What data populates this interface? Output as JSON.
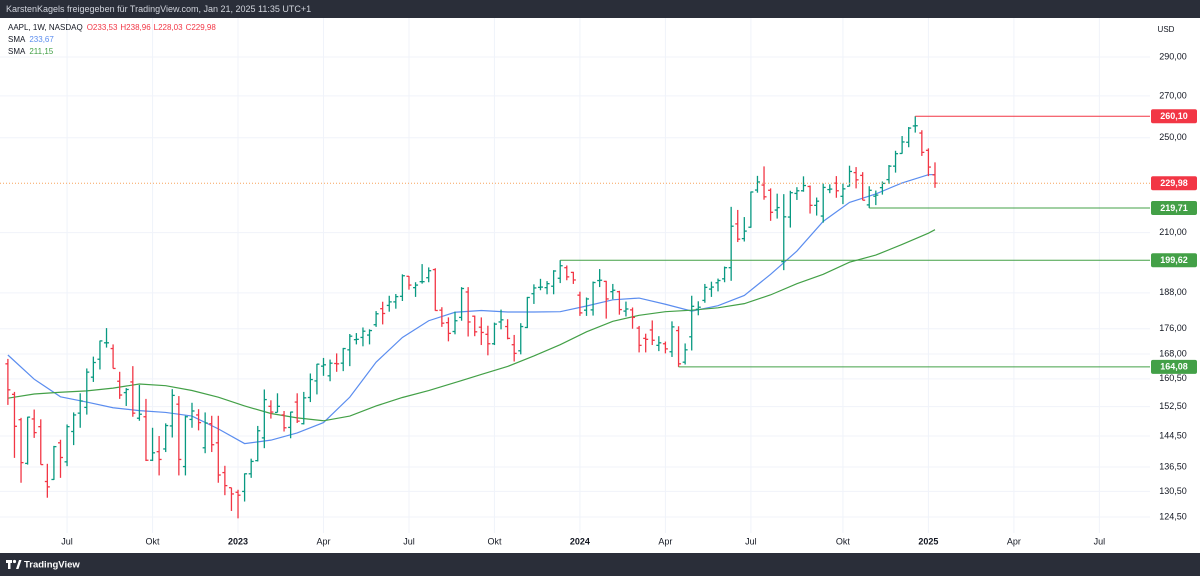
{
  "header": "KarstenKagels freigegeben für TradingView.com, Jan 21, 2025 11:35 UTC+1",
  "footer": "TradingView",
  "chart_data": {
    "type": "ohlc",
    "symbol": "AAPL, 1W, NASDAQ",
    "ohlc_labels": [
      "O233,53",
      "H238,96",
      "L228,03",
      "C229,98"
    ],
    "categories": [
      null,
      null,
      null,
      null,
      null,
      null,
      null,
      null,
      null,
      null,
      null,
      null,
      null,
      null,
      null,
      null,
      null,
      null,
      null,
      null,
      null,
      null,
      null,
      null,
      null,
      null,
      null,
      null,
      null,
      null,
      null,
      null,
      null,
      null,
      null,
      null,
      null,
      null,
      null,
      null,
      null,
      null,
      null,
      null,
      null,
      null,
      null,
      null,
      null,
      null,
      null,
      null,
      null,
      null,
      null,
      null,
      null,
      null,
      null,
      null,
      null,
      null,
      null,
      null,
      null,
      null,
      null,
      null,
      null,
      null,
      null,
      null,
      null,
      null,
      null,
      null,
      null,
      null,
      null,
      null,
      null,
      null,
      null,
      null,
      null,
      null,
      null,
      null,
      null,
      null,
      null,
      null,
      null,
      null,
      null,
      null,
      null,
      null,
      null,
      null,
      null,
      null,
      null,
      null,
      null,
      null,
      null,
      null,
      null,
      null,
      null,
      null,
      null,
      null,
      null,
      null,
      null,
      null,
      null,
      null,
      null,
      null,
      null,
      null,
      null,
      null,
      null,
      null,
      null,
      null,
      null,
      null,
      null,
      null,
      null,
      null,
      null,
      null,
      null,
      null,
      null,
      null
    ],
    "open": [
      165.0,
      156.0,
      148.9,
      137.4,
      149.1,
      147.0,
      132.9,
      133.4,
      142.7,
      137.8,
      145.7,
      150.7,
      152.3,
      161.0,
      166.4,
      171.5,
      169.7,
      159.8,
      156.5,
      159.6,
      149.3,
      149.7,
      138.2,
      140.4,
      141.1,
      147.2,
      153.2,
      136.6,
      148.97,
      150.2,
      141.4,
      147.8,
      142.7,
      135.1,
      131.4,
      130.3,
      130.5,
      134.8,
      138.1,
      144.0,
      152.6,
      150.9,
      150.2,
      146.8,
      153.8,
      147.8,
      155.1,
      159.9,
      164.3,
      161.4,
      165.1,
      165.2,
      169.3,
      172.5,
      173.2,
      173.96,
      177.3,
      182.6,
      183.7,
      184.9,
      186.8,
      193.8,
      189.8,
      191.9,
      193.3,
      196.2,
      182.1,
      177.97,
      175.1,
      179.7,
      188.3,
      180.1,
      176.5,
      174.2,
      171.2,
      178.2,
      176.7,
      170.9,
      169.0,
      176.4,
      187.7,
      189.9,
      189.8,
      190.3,
      193.1,
      196.9,
      195.2,
      187.2,
      182.1,
      182.2,
      192.3,
      192.0,
      188.4,
      188.4,
      181.8,
      182.2,
      176.2,
      172.9,
      175.6,
      170.7,
      171.2,
      168.7,
      175.4,
      165.5,
      173.4,
      182.4,
      185.4,
      189.3,
      191.5,
      192.9,
      196.9,
      213.4,
      207.7,
      212.1,
      227.1,
      229.2,
      227.0,
      218.9,
      199.1,
      216.1,
      225.7,
      226.8,
      228.6,
      220.8,
      216.5,
      227.3,
      230.0,
      224.5,
      228.7,
      234.5,
      233.3,
      220.99,
      224.55,
      228.1,
      231.5,
      237.3,
      242.9,
      247.95,
      255.5,
      252.2,
      244.3,
      233.53
    ],
    "high": [
      166.5,
      156.7,
      149.4,
      149.7,
      151.7,
      149.0,
      137.3,
      141.9,
      143.5,
      147.6,
      150.9,
      156.3,
      163.6,
      167.2,
      172.2,
      176.2,
      171.0,
      162.6,
      157.8,
      164.3,
      158.7,
      154.7,
      146.7,
      144.5,
      147.9,
      157.5,
      155.5,
      150.0,
      153.6,
      151.8,
      150.9,
      149.97,
      149.97,
      136.8,
      131.4,
      130.9,
      134.9,
      138.6,
      147.2,
      157.4,
      154.3,
      156.3,
      151.3,
      151.1,
      156.3,
      156.7,
      162.1,
      165.0,
      166.8,
      166.3,
      168.2,
      169.9,
      174.3,
      174.6,
      176.4,
      175.8,
      181.8,
      184.95,
      186.99,
      187.6,
      194.5,
      193.9,
      191.7,
      198.2,
      197.0,
      196.7,
      183.1,
      179.7,
      181.6,
      189.98,
      189.98,
      180.3,
      179.7,
      176.97,
      177.99,
      182.3,
      179.1,
      174.0,
      177.8,
      186.6,
      190.96,
      192.9,
      192.1,
      195.99,
      199.62,
      197.7,
      195.4,
      188.4,
      186.4,
      191.95,
      196.4,
      192.2,
      191.1,
      188.7,
      185.0,
      183.0,
      176.9,
      174.4,
      178.7,
      173.6,
      171.9,
      178.4,
      176.8,
      171.3,
      187.0,
      185.1,
      191.1,
      191.9,
      193.0,
      197.3,
      220.2,
      218.95,
      216.1,
      226.5,
      233.1,
      237.2,
      227.8,
      225.6,
      225.4,
      226.8,
      228.3,
      232.9,
      229.0,
      224.0,
      229.8,
      229.5,
      233.0,
      229.8,
      237.5,
      236.9,
      234.7,
      228.7,
      226.9,
      230.7,
      237.8,
      244.1,
      250.8,
      255.0,
      260.1,
      253.5,
      245.2,
      238.96
    ],
    "low": [
      153.0,
      138.8,
      132.6,
      137.1,
      144.0,
      137.1,
      129.0,
      133.3,
      133.8,
      136.7,
      142.1,
      146.7,
      150.3,
      159.6,
      163.3,
      170.0,
      163.6,
      154.7,
      152.7,
      149.7,
      148.6,
      138.0,
      138.0,
      134.4,
      140.3,
      144.1,
      134.4,
      134.4,
      146.7,
      146.0,
      140.0,
      140.3,
      132.6,
      129.6,
      125.9,
      124.2,
      128.1,
      133.8,
      137.9,
      141.3,
      149.2,
      150.9,
      145.7,
      143.9,
      148.0,
      147.6,
      153.8,
      155.98,
      161.4,
      159.8,
      162.6,
      162.8,
      164.3,
      171.0,
      170.4,
      171.0,
      176.6,
      177.4,
      181.6,
      182.6,
      185.2,
      189.1,
      186.6,
      191.2,
      191.7,
      181.9,
      176.6,
      171.96,
      174.2,
      178.6,
      173.5,
      173.6,
      170.8,
      167.6,
      170.8,
      175.8,
      172.6,
      165.7,
      167.9,
      176.2,
      184.2,
      188.9,
      187.5,
      187.5,
      191.4,
      192.4,
      191.1,
      180.2,
      180.2,
      180.3,
      190.0,
      179.3,
      185.8,
      180.6,
      180.0,
      176.0,
      168.5,
      168.5,
      170.8,
      168.9,
      168.2,
      167.1,
      164.08,
      164.8,
      169.1,
      180.4,
      184.6,
      186.6,
      188.5,
      191.7,
      192.2,
      206.4,
      206.6,
      211.9,
      226.0,
      223.1,
      214.6,
      215.5,
      196.0,
      211.97,
      223.0,
      226.4,
      217.5,
      216.7,
      213.9,
      225.8,
      223.9,
      221.3,
      228.6,
      227.8,
      222.9,
      219.71,
      220.9,
      225.2,
      229.7,
      234.5,
      242.8,
      245.7,
      252.4,
      241.8,
      233.0,
      228.03
    ],
    "close": [
      157.3,
      147.1,
      137.6,
      149.6,
      145.4,
      137.1,
      131.6,
      141.7,
      138.9,
      147.0,
      150.2,
      154.1,
      162.5,
      165.4,
      172.1,
      171.5,
      163.6,
      155.8,
      157.4,
      150.7,
      150.4,
      138.2,
      140.1,
      138.4,
      147.3,
      155.7,
      138.4,
      149.7,
      151.3,
      148.1,
      148.0,
      142.2,
      134.5,
      131.9,
      129.9,
      129.6,
      134.8,
      137.9,
      145.9,
      154.5,
      151.0,
      152.6,
      146.7,
      151.0,
      148.5,
      155.0,
      160.3,
      164.9,
      164.7,
      165.2,
      165.0,
      169.7,
      173.6,
      172.6,
      175.2,
      175.4,
      180.9,
      181.0,
      184.9,
      186.7,
      194.0,
      190.7,
      190.7,
      191.9,
      195.8,
      182.0,
      177.8,
      174.5,
      178.6,
      189.5,
      178.2,
      175.0,
      174.8,
      171.2,
      177.5,
      178.9,
      172.9,
      168.2,
      176.7,
      186.4,
      189.7,
      190.0,
      191.2,
      195.7,
      197.6,
      193.6,
      192.5,
      181.2,
      185.9,
      191.6,
      192.4,
      185.9,
      188.9,
      182.3,
      182.5,
      179.7,
      170.7,
      172.6,
      172.3,
      171.5,
      169.6,
      176.6,
      165.0,
      169.3,
      183.4,
      183.1,
      189.9,
      190.0,
      192.3,
      196.9,
      212.5,
      207.5,
      210.6,
      226.3,
      230.5,
      224.3,
      218.0,
      219.9,
      216.2,
      226.0,
      226.8,
      229.0,
      220.8,
      222.5,
      228.2,
      227.5,
      226.8,
      227.6,
      235.0,
      231.4,
      222.9,
      227.0,
      225.0,
      229.9,
      237.3,
      242.8,
      248.1,
      254.5,
      255.6,
      243.4,
      236.9,
      229.98
    ],
    "up_color": "#089981",
    "down_color": "#f23645",
    "series": [
      {
        "name": "SMA",
        "color": "#5b8def",
        "value_label": "233,67",
        "x": [
          0,
          4,
          8,
          12,
          16,
          20,
          24,
          28,
          32,
          36,
          40,
          44,
          48,
          52,
          56,
          60,
          64,
          68,
          72,
          76,
          80,
          84,
          88,
          92,
          96,
          100,
          104,
          108,
          112,
          116,
          120,
          124,
          128,
          132,
          136,
          140,
          141
        ],
        "values": [
          167.7,
          160.4,
          155.3,
          153.8,
          152.2,
          151.4,
          150.9,
          149.9,
          146.4,
          142.5,
          143.4,
          145.3,
          148.1,
          155.2,
          165.5,
          173.2,
          178.6,
          181.4,
          182.0,
          181.5,
          181.5,
          181.6,
          183.5,
          185.6,
          186.2,
          184.1,
          181.8,
          183.6,
          187.1,
          194.5,
          203.0,
          214.4,
          222.0,
          225.5,
          230.1,
          233.6,
          233.67
        ]
      },
      {
        "name": "SMA",
        "color": "#43a047",
        "value_label": "211,15",
        "x": [
          0,
          4,
          8,
          12,
          16,
          20,
          24,
          28,
          32,
          36,
          40,
          44,
          48,
          52,
          56,
          60,
          64,
          68,
          72,
          76,
          80,
          84,
          88,
          92,
          96,
          100,
          104,
          108,
          112,
          116,
          120,
          124,
          128,
          132,
          136,
          140,
          141
        ],
        "values": [
          154.9,
          156.1,
          156.6,
          157.0,
          157.8,
          159.0,
          158.5,
          157.1,
          155.2,
          152.7,
          150.6,
          149.4,
          148.6,
          149.9,
          152.7,
          155.1,
          157.1,
          159.4,
          161.8,
          164.2,
          167.4,
          170.9,
          175.0,
          178.4,
          180.4,
          181.6,
          182.1,
          182.9,
          184.3,
          187.3,
          191.2,
          194.5,
          198.9,
          201.5,
          205.5,
          209.8,
          211.15
        ]
      }
    ],
    "unit": "USD",
    "log_scale": true,
    "grid": true,
    "ylim": [
      120.9,
      309.3
    ],
    "yticks": [
      {
        "value": 124.5,
        "label": "124,50"
      },
      {
        "value": 130.5,
        "label": "130,50"
      },
      {
        "value": 136.5,
        "label": "136,50"
      },
      {
        "value": 144.5,
        "label": "144,50"
      },
      {
        "value": 152.5,
        "label": "152,50"
      },
      {
        "value": 160.5,
        "label": "160,50"
      },
      {
        "value": 168,
        "label": "168,00"
      },
      {
        "value": 176,
        "label": "176,00"
      },
      {
        "value": 188,
        "label": "188,00"
      },
      {
        "value": 210,
        "label": "210,00"
      },
      {
        "value": 250,
        "label": "250,00"
      },
      {
        "value": 270,
        "label": "270,00"
      },
      {
        "value": 290,
        "label": "290,00"
      }
    ],
    "xlim": [
      -1.2,
      173.7
    ],
    "xticks": [
      {
        "value": 9,
        "label": "Jul"
      },
      {
        "value": 22,
        "label": "Okt"
      },
      {
        "value": 35,
        "label": "2023"
      },
      {
        "value": 48,
        "label": "Apr"
      },
      {
        "value": 61,
        "label": "Jul"
      },
      {
        "value": 74,
        "label": "Okt"
      },
      {
        "value": 87,
        "label": "2024"
      },
      {
        "value": 100,
        "label": "Apr"
      },
      {
        "value": 113,
        "label": "Jul"
      },
      {
        "value": 127,
        "label": "Okt"
      },
      {
        "value": 140,
        "label": "2025"
      },
      {
        "value": 153,
        "label": "Apr"
      },
      {
        "value": 166,
        "label": "Jul"
      }
    ],
    "levels": [
      {
        "value": 260.1,
        "label": "260,10",
        "color": "#f23645",
        "from": 138
      },
      {
        "value": 219.71,
        "label": "219,71",
        "color": "#43a047",
        "from": 131
      },
      {
        "value": 199.62,
        "label": "199,62",
        "color": "#43a047",
        "from": 84
      },
      {
        "value": 164.08,
        "label": "164,08",
        "color": "#43a047",
        "from": 102
      }
    ],
    "last_price": {
      "value": 229.98,
      "label": "229,98",
      "color": "#f23645"
    }
  }
}
